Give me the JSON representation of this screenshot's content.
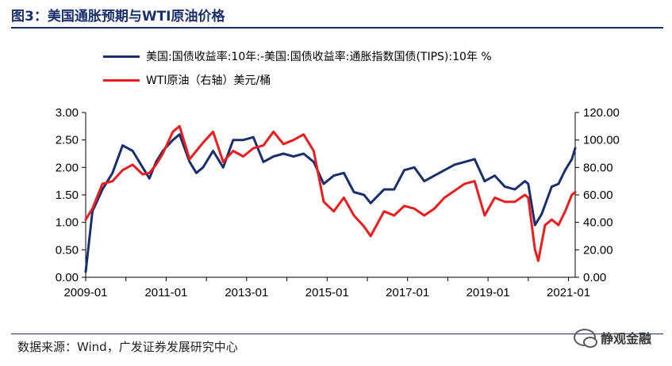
{
  "figure": {
    "title": "图3：美国通胀预期与WTI原油价格",
    "source": "数据来源：Wind，广发证券发展研究中心",
    "watermark": "静观金融",
    "watermark_icon": "wechat-icon"
  },
  "colors": {
    "title": "#1a2f6e",
    "series_breakeven": "#1a2f6e",
    "series_wti": "#ee1c1c",
    "axis": "#000000"
  },
  "chart_data": {
    "type": "line",
    "title": "",
    "xlabel": "",
    "ylabel": "",
    "y2label": "",
    "x_ticks": [
      "2009-01",
      "2011-01",
      "2013-01",
      "2015-01",
      "2017-01",
      "2019-01",
      "2021-01"
    ],
    "xlim": [
      "2009-01",
      "2021-03"
    ],
    "ylim": [
      0,
      3
    ],
    "y_ticks": [
      "0.00",
      "0.50",
      "1.00",
      "1.50",
      "2.00",
      "2.50",
      "3.00"
    ],
    "y2lim": [
      0,
      120
    ],
    "y2_ticks": [
      "0.00",
      "20.00",
      "40.00",
      "60.00",
      "80.00",
      "100.00",
      "120.00"
    ],
    "grid": false,
    "legend_position": "top",
    "series": [
      {
        "name": "美国:国债收益率:10年:-美国:国债收益率:通胀指数国债(TIPS):10年 %",
        "axis": "left",
        "x": [
          "2009-01",
          "2009-03",
          "2009-06",
          "2009-09",
          "2009-12",
          "2010-03",
          "2010-06",
          "2010-08",
          "2010-10",
          "2010-12",
          "2011-03",
          "2011-05",
          "2011-08",
          "2011-10",
          "2011-12",
          "2012-03",
          "2012-06",
          "2012-09",
          "2012-12",
          "2013-03",
          "2013-06",
          "2013-09",
          "2013-12",
          "2014-03",
          "2014-06",
          "2014-09",
          "2014-12",
          "2015-03",
          "2015-06",
          "2015-09",
          "2015-12",
          "2016-02",
          "2016-06",
          "2016-09",
          "2016-12",
          "2017-03",
          "2017-06",
          "2017-09",
          "2017-12",
          "2018-03",
          "2018-06",
          "2018-09",
          "2018-12",
          "2019-03",
          "2019-06",
          "2019-09",
          "2019-12",
          "2020-01",
          "2020-03",
          "2020-05",
          "2020-08",
          "2020-10",
          "2020-12",
          "2021-02",
          "2021-03"
        ],
        "y": [
          0.1,
          1.2,
          1.6,
          1.9,
          2.4,
          2.3,
          2.0,
          1.8,
          2.1,
          2.3,
          2.5,
          2.6,
          2.1,
          1.9,
          2.0,
          2.3,
          2.0,
          2.5,
          2.5,
          2.55,
          2.1,
          2.2,
          2.25,
          2.2,
          2.25,
          2.1,
          1.7,
          1.85,
          1.9,
          1.55,
          1.5,
          1.35,
          1.6,
          1.6,
          1.95,
          2.0,
          1.75,
          1.85,
          1.95,
          2.05,
          2.1,
          2.15,
          1.75,
          1.85,
          1.65,
          1.6,
          1.75,
          1.7,
          0.95,
          1.15,
          1.65,
          1.7,
          1.95,
          2.15,
          2.35
        ]
      },
      {
        "name": "WTI原油（右轴）美元/桶",
        "axis": "right",
        "x": [
          "2009-01",
          "2009-03",
          "2009-06",
          "2009-09",
          "2009-12",
          "2010-03",
          "2010-06",
          "2010-08",
          "2010-10",
          "2010-12",
          "2011-03",
          "2011-05",
          "2011-08",
          "2011-10",
          "2011-12",
          "2012-03",
          "2012-06",
          "2012-09",
          "2012-12",
          "2013-03",
          "2013-06",
          "2013-09",
          "2013-12",
          "2014-03",
          "2014-06",
          "2014-09",
          "2014-12",
          "2015-03",
          "2015-06",
          "2015-09",
          "2015-12",
          "2016-02",
          "2016-06",
          "2016-09",
          "2016-12",
          "2017-03",
          "2017-06",
          "2017-09",
          "2017-12",
          "2018-03",
          "2018-06",
          "2018-09",
          "2018-12",
          "2019-03",
          "2019-06",
          "2019-09",
          "2019-12",
          "2020-01",
          "2020-03",
          "2020-04",
          "2020-06",
          "2020-08",
          "2020-10",
          "2020-12",
          "2021-02",
          "2021-03"
        ],
        "y": [
          42,
          50,
          68,
          70,
          78,
          82,
          75,
          76,
          82,
          90,
          106,
          110,
          86,
          92,
          98,
          106,
          84,
          92,
          88,
          94,
          96,
          106,
          97,
          100,
          104,
          92,
          55,
          48,
          58,
          45,
          37,
          30,
          48,
          45,
          52,
          50,
          45,
          50,
          58,
          63,
          68,
          70,
          45,
          58,
          55,
          55,
          60,
          58,
          20,
          12,
          38,
          42,
          38,
          48,
          60,
          62
        ]
      }
    ]
  }
}
